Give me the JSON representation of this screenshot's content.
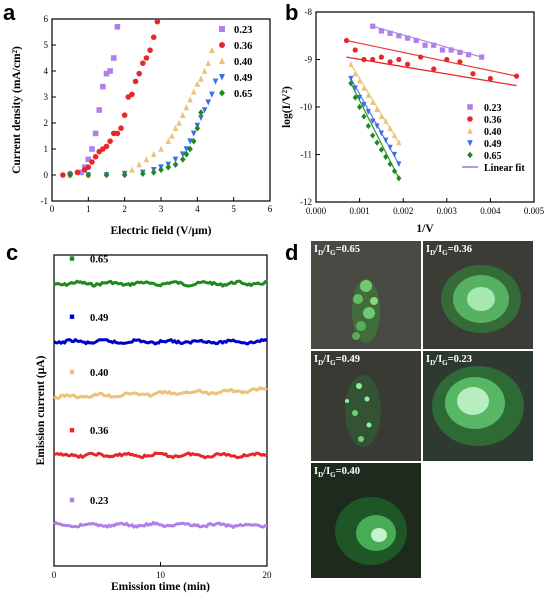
{
  "panel_letters": {
    "a": "a",
    "b": "b",
    "c": "c",
    "d": "d"
  },
  "colors": {
    "0.23": "#b07fe8",
    "0.36": "#e8272b",
    "0.40": "#ebc278",
    "0.49": "#3b6fe8",
    "0.65": "#1e8a1e",
    "c_0.49": "#0000cc"
  },
  "chart_data": [
    {
      "panel": "a",
      "type": "scatter",
      "xlabel": "Electric field (V/μm)",
      "ylabel": "Current density (mA/cm²)",
      "xlim": [
        0,
        6
      ],
      "ylim": [
        -1,
        6
      ],
      "xticks": [
        "0",
        "1",
        "2",
        "3",
        "4",
        "5",
        "6"
      ],
      "yticks": [
        "-1",
        "0",
        "1",
        "2",
        "3",
        "4",
        "5",
        "6"
      ],
      "legend_position": "top-right",
      "series": [
        {
          "name": "0.23",
          "marker": "square",
          "x": [
            0.8,
            0.9,
            1.0,
            1.1,
            1.2,
            1.3,
            1.4,
            1.5,
            1.6,
            1.7,
            1.8
          ],
          "y": [
            0.1,
            0.3,
            0.6,
            1.0,
            1.6,
            2.5,
            3.4,
            3.9,
            4.0,
            4.5,
            5.7
          ]
        },
        {
          "name": "0.36",
          "marker": "circle",
          "x": [
            0.3,
            0.5,
            0.7,
            0.9,
            1.0,
            1.1,
            1.2,
            1.3,
            1.4,
            1.5,
            1.6,
            1.7,
            1.8,
            1.9,
            2.0,
            2.1,
            2.2,
            2.3,
            2.4,
            2.5,
            2.6,
            2.7,
            2.8,
            2.9
          ],
          "y": [
            0.0,
            0.05,
            0.1,
            0.2,
            0.3,
            0.5,
            0.7,
            0.9,
            1.0,
            1.1,
            1.3,
            1.6,
            1.6,
            1.8,
            2.3,
            3.0,
            3.1,
            3.6,
            3.9,
            4.3,
            4.5,
            4.8,
            5.3,
            5.9
          ]
        },
        {
          "name": "0.40",
          "marker": "triangle-up",
          "x": [
            0.5,
            1.0,
            1.5,
            2.0,
            2.2,
            2.4,
            2.6,
            2.8,
            3.0,
            3.2,
            3.3,
            3.4,
            3.5,
            3.6,
            3.7,
            3.8,
            3.9,
            4.0,
            4.1,
            4.2,
            4.3,
            4.4
          ],
          "y": [
            0.0,
            0.0,
            0.05,
            0.1,
            0.2,
            0.4,
            0.6,
            0.8,
            1.0,
            1.3,
            1.5,
            1.8,
            2.0,
            2.3,
            2.6,
            2.9,
            3.2,
            3.5,
            3.7,
            4.0,
            4.3,
            4.8
          ]
        },
        {
          "name": "0.49",
          "marker": "triangle-down",
          "x": [
            0.5,
            1.0,
            1.5,
            2.0,
            2.5,
            2.8,
            3.0,
            3.2,
            3.4,
            3.6,
            3.7,
            3.8,
            3.9,
            4.0,
            4.1,
            4.2,
            4.3,
            4.4,
            4.5
          ],
          "y": [
            0.0,
            0.0,
            0.0,
            0.05,
            0.1,
            0.2,
            0.3,
            0.4,
            0.6,
            0.8,
            1.0,
            1.3,
            1.6,
            1.9,
            2.2,
            2.5,
            2.8,
            3.1,
            3.6
          ]
        },
        {
          "name": "0.65",
          "marker": "diamond",
          "x": [
            0.5,
            1.0,
            1.5,
            2.0,
            2.5,
            2.8,
            3.0,
            3.2,
            3.4,
            3.6,
            3.7,
            3.8,
            3.9,
            4.0,
            4.1
          ],
          "y": [
            0.0,
            0.0,
            0.0,
            0.0,
            0.05,
            0.1,
            0.2,
            0.3,
            0.4,
            0.6,
            0.8,
            1.0,
            1.3,
            1.8,
            2.4
          ]
        }
      ]
    },
    {
      "panel": "b",
      "type": "scatter",
      "xlabel": "1/V",
      "ylabel": "log(I/V²)",
      "xlim": [
        0,
        0.005
      ],
      "ylim": [
        -12,
        -8
      ],
      "xticks": [
        "0.000",
        "0.001",
        "0.002",
        "0.003",
        "0.004",
        "0.005"
      ],
      "yticks": [
        "-12",
        "-11",
        "-10",
        "-9",
        "-8"
      ],
      "legend_position": "bottom-right",
      "series": [
        {
          "name": "0.23",
          "marker": "square",
          "x": [
            0.0013,
            0.0015,
            0.0017,
            0.0019,
            0.0021,
            0.0023,
            0.0025,
            0.0027,
            0.0029,
            0.0031,
            0.0033,
            0.0035,
            0.0038
          ],
          "y": [
            -8.3,
            -8.4,
            -8.45,
            -8.5,
            -8.55,
            -8.6,
            -8.7,
            -8.7,
            -8.8,
            -8.8,
            -8.85,
            -8.9,
            -8.95
          ]
        },
        {
          "name": "0.36",
          "marker": "circle",
          "x": [
            0.0007,
            0.0009,
            0.0011,
            0.0013,
            0.0015,
            0.0017,
            0.0019,
            0.0021,
            0.0024,
            0.0027,
            0.003,
            0.0033,
            0.0036,
            0.004,
            0.0046
          ],
          "y": [
            -8.6,
            -8.8,
            -9.0,
            -9.0,
            -8.95,
            -9.05,
            -9.0,
            -9.1,
            -8.95,
            -9.2,
            -9.0,
            -9.05,
            -9.3,
            -9.4,
            -9.35
          ]
        },
        {
          "name": "0.40",
          "marker": "triangle-up",
          "x": [
            0.0008,
            0.0009,
            0.001,
            0.0011,
            0.0012,
            0.0013,
            0.0014,
            0.0015,
            0.0016,
            0.0017,
            0.0018,
            0.0019
          ],
          "y": [
            -9.1,
            -9.3,
            -9.45,
            -9.6,
            -9.75,
            -9.9,
            -10.05,
            -10.2,
            -10.3,
            -10.45,
            -10.6,
            -10.75
          ]
        },
        {
          "name": "0.49",
          "marker": "triangle-down",
          "x": [
            0.0008,
            0.0009,
            0.001,
            0.0011,
            0.0012,
            0.0013,
            0.0014,
            0.0015,
            0.0016,
            0.0017,
            0.0018,
            0.0019
          ],
          "y": [
            -9.4,
            -9.6,
            -9.8,
            -9.95,
            -10.1,
            -10.3,
            -10.4,
            -10.55,
            -10.7,
            -10.85,
            -11.0,
            -11.2
          ]
        },
        {
          "name": "0.65",
          "marker": "diamond",
          "x": [
            0.0008,
            0.0009,
            0.001,
            0.0011,
            0.0012,
            0.0013,
            0.0014,
            0.0015,
            0.0016,
            0.0017,
            0.0018,
            0.0019
          ],
          "y": [
            -9.5,
            -9.8,
            -10.0,
            -10.2,
            -10.4,
            -10.6,
            -10.75,
            -10.9,
            -11.05,
            -11.2,
            -11.35,
            -11.5
          ]
        },
        {
          "name": "Linear fit",
          "marker": "line",
          "x": [
            0.0007,
            0.0046
          ],
          "y": [
            -8.95,
            -9.55
          ]
        }
      ]
    },
    {
      "panel": "c",
      "type": "line",
      "xlabel": "Emission time (min)",
      "ylabel": "Emission current (μA)",
      "xlim": [
        0,
        20
      ],
      "xticks": [
        "0",
        "10",
        "20"
      ],
      "yticks": [],
      "series": [
        {
          "name": "0.65",
          "level": 0.95
        },
        {
          "name": "0.49",
          "level": 0.75
        },
        {
          "name": "0.40",
          "level": 0.56
        },
        {
          "name": "0.36",
          "level": 0.36
        },
        {
          "name": "0.23",
          "level": 0.12
        }
      ]
    }
  ],
  "photos": [
    {
      "ratio": "0.65",
      "label_prefix": "I",
      "label_sub1": "D",
      "label_mid": "/I",
      "label_sub2": "G",
      "label_suffix": "=0.65"
    },
    {
      "ratio": "0.36",
      "label_prefix": "I",
      "label_sub1": "D",
      "label_mid": "/I",
      "label_sub2": "G",
      "label_suffix": "=0.36"
    },
    {
      "ratio": "0.49",
      "label_prefix": "I",
      "label_sub1": "D",
      "label_mid": "/I",
      "label_sub2": "G",
      "label_suffix": "=0.49"
    },
    {
      "ratio": "0.23",
      "label_prefix": "I",
      "label_sub1": "D",
      "label_mid": "/I",
      "label_sub2": "G",
      "label_suffix": "=0.23"
    },
    {
      "ratio": "0.40",
      "label_prefix": "I",
      "label_sub1": "D",
      "label_mid": "/I",
      "label_sub2": "G",
      "label_suffix": "=0.40"
    }
  ]
}
